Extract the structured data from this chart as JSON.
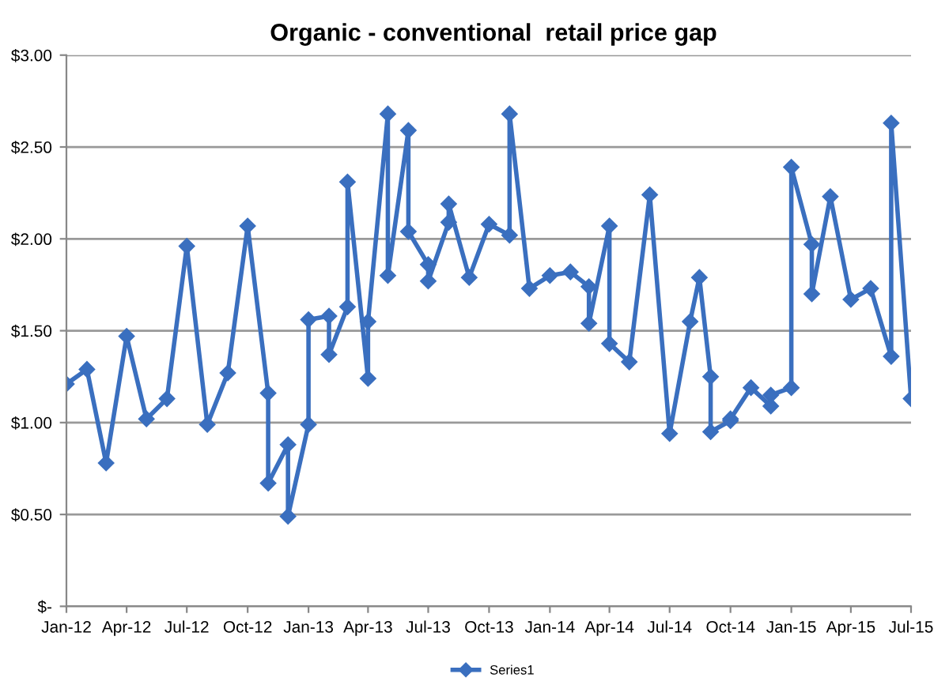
{
  "chart_data": {
    "type": "line",
    "title": "Organic - conventional  retail price gap",
    "x": [
      "2012-01-01",
      "2012-02-01",
      "2012-03-01",
      "2012-04-01",
      "2012-05-01",
      "2012-06-01",
      "2012-07-01",
      "2012-08-01",
      "2012-09-01",
      "2012-10-01",
      "2012-11-01",
      "2012-11-01",
      "2012-12-01",
      "2012-12-01",
      "2013-01-01",
      "2013-01-01",
      "2013-02-01",
      "2013-02-01",
      "2013-03-01",
      "2013-03-01",
      "2013-04-01",
      "2013-04-01",
      "2013-05-01",
      "2013-05-01",
      "2013-06-01",
      "2013-06-01",
      "2013-07-01",
      "2013-07-01",
      "2013-08-01",
      "2013-08-01",
      "2013-09-01",
      "2013-10-01",
      "2013-11-01",
      "2013-11-01",
      "2013-12-01",
      "2014-01-01",
      "2014-02-01",
      "2014-03-01",
      "2014-03-01",
      "2014-04-01",
      "2014-04-01",
      "2014-05-01",
      "2014-06-01",
      "2014-07-01",
      "2014-08-01",
      "2014-08-15",
      "2014-09-01",
      "2014-09-01",
      "2014-10-01",
      "2014-10-01",
      "2014-11-01",
      "2014-12-01",
      "2014-12-01",
      "2015-01-01",
      "2015-01-01",
      "2015-02-01",
      "2015-02-01",
      "2015-03-01",
      "2015-04-01",
      "2015-05-01",
      "2015-06-01",
      "2015-06-01",
      "2015-07-01"
    ],
    "series": [
      {
        "name": "Series1",
        "color": "#3a6fbf",
        "values": [
          1.21,
          1.29,
          0.78,
          1.47,
          1.02,
          1.13,
          1.96,
          0.99,
          1.27,
          2.07,
          1.16,
          0.67,
          0.88,
          0.49,
          0.99,
          1.56,
          1.58,
          1.37,
          1.63,
          2.31,
          1.24,
          1.55,
          2.68,
          1.8,
          2.59,
          2.04,
          1.86,
          1.77,
          2.09,
          2.19,
          1.79,
          2.08,
          2.02,
          2.68,
          1.73,
          1.8,
          1.82,
          1.74,
          1.54,
          2.07,
          1.43,
          1.33,
          2.24,
          0.94,
          1.55,
          1.79,
          1.25,
          0.95,
          1.01,
          1.02,
          1.19,
          1.09,
          1.15,
          1.19,
          2.39,
          1.97,
          1.7,
          2.23,
          1.67,
          1.73,
          1.36,
          2.63,
          1.13
        ]
      }
    ],
    "xlim": [
      "2012-01-01",
      "2015-07-01"
    ],
    "xticks": [
      {
        "value": "2012-01-01",
        "label": "Jan-12"
      },
      {
        "value": "2012-04-01",
        "label": "Apr-12"
      },
      {
        "value": "2012-07-01",
        "label": "Jul-12"
      },
      {
        "value": "2012-10-01",
        "label": "Oct-12"
      },
      {
        "value": "2013-01-01",
        "label": "Jan-13"
      },
      {
        "value": "2013-04-01",
        "label": "Apr-13"
      },
      {
        "value": "2013-07-01",
        "label": "Jul-13"
      },
      {
        "value": "2013-10-01",
        "label": "Oct-13"
      },
      {
        "value": "2014-01-01",
        "label": "Jan-14"
      },
      {
        "value": "2014-04-01",
        "label": "Apr-14"
      },
      {
        "value": "2014-07-01",
        "label": "Jul-14"
      },
      {
        "value": "2014-10-01",
        "label": "Oct-14"
      },
      {
        "value": "2015-01-01",
        "label": "Jan-15"
      },
      {
        "value": "2015-04-01",
        "label": "Apr-15"
      },
      {
        "value": "2015-07-01",
        "label": "Jul-15"
      }
    ],
    "ylim": [
      0,
      3
    ],
    "yticks": [
      {
        "value": 0,
        "label": "$-"
      },
      {
        "value": 0.5,
        "label": "$0.50"
      },
      {
        "value": 1,
        "label": "$1.00"
      },
      {
        "value": 1.5,
        "label": "$1.50"
      },
      {
        "value": 2,
        "label": "$2.00"
      },
      {
        "value": 2.5,
        "label": "$2.50"
      },
      {
        "value": 3,
        "label": "$3.00"
      }
    ],
    "grid": "y",
    "legend": "bottom",
    "marker": "diamond",
    "line_style": "solid"
  }
}
